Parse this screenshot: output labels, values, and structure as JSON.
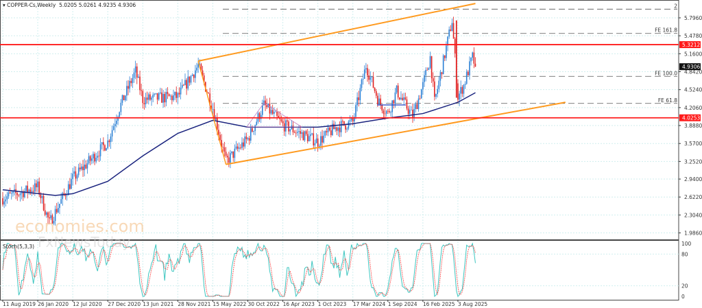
{
  "header": {
    "symbol": "COPPER-Cs,Weekly",
    "ohlc": "5.0205 5.0261 4.9235 4.9306"
  },
  "indicator": {
    "label": "Stoch(5,3,3)",
    "levels": [
      "100",
      "80",
      "20",
      "0"
    ]
  },
  "watermarks": [
    "economies.com",
    "FxNewsToday"
  ],
  "colors": {
    "bull": "#2a7fd4",
    "bear": "#e02020",
    "ma": "#1a237e",
    "channel": "#ff9a1f",
    "level": "#ff1a1a",
    "stoch_main": "#3cc6c0",
    "stoch_signal": "#ff4040"
  },
  "chart_data": {
    "type": "candlestick",
    "timeframe": "Weekly",
    "y_ticks": [
      "5.7960",
      "5.4780",
      "5.1600",
      "4.8420",
      "4.5240",
      "4.2060",
      "3.8880",
      "3.5700",
      "3.2520",
      "2.9400",
      "2.6220",
      "2.3040",
      "1.9860"
    ],
    "x_ticks": [
      "11 Aug 2019",
      "26 Jan 2020",
      "12 Jul 2020",
      "27 Dec 2020",
      "13 Jun 2021",
      "28 Nov 2021",
      "15 May 2022",
      "30 Oct 2022",
      "16 Apr 2023",
      "1 Oct 2023",
      "17 Mar 2024",
      "1 Sep 2024",
      "16 Feb 2025",
      "3 Aug 2025"
    ],
    "last_price": "4.9306",
    "horizontal_levels": [
      {
        "label": "5.3212",
        "value": 5.3212
      },
      {
        "label": "4.0253",
        "value": 4.0253
      }
    ],
    "fibonacci": [
      {
        "label": "2",
        "value": 5.95
      },
      {
        "label": "FE 161.8",
        "value": 5.52
      },
      {
        "label": "FE 100.0",
        "value": 4.76
      },
      {
        "label": "FE 61.8",
        "value": 4.28
      }
    ],
    "price_path": [
      [
        "11 Aug 2019",
        2.6
      ],
      [
        "26 Jan 2020",
        2.8
      ],
      [
        "22 Mar 2020",
        2.16
      ],
      [
        "12 Jul 2020",
        2.95
      ],
      [
        "27 Dec 2020",
        3.6
      ],
      [
        "21 Feb 2021",
        4.2
      ],
      [
        "9 May 2021",
        4.85
      ],
      [
        "13 Jun 2021",
        4.35
      ],
      [
        "28 Nov 2021",
        4.4
      ],
      [
        "6 Mar 2022",
        4.95
      ],
      [
        "15 May 2022",
        4.2
      ],
      [
        "17 Jul 2022",
        3.25
      ],
      [
        "30 Oct 2022",
        3.65
      ],
      [
        "15 Jan 2023",
        4.25
      ],
      [
        "16 Apr 2023",
        3.9
      ],
      [
        "1 Oct 2023",
        3.6
      ],
      [
        "24 Dec 2023",
        3.85
      ],
      [
        "17 Mar 2024",
        3.95
      ],
      [
        "19 May 2024",
        4.95
      ],
      [
        "21 Jul 2024",
        4.3
      ],
      [
        "1 Sep 2024",
        4.1
      ],
      [
        "13 Oct 2024",
        4.5
      ],
      [
        "29 Dec 2024",
        4.05
      ],
      [
        "16 Feb 2025",
        4.6
      ],
      [
        "23 Mar 2025",
        5.1
      ],
      [
        "13 Apr 2025",
        4.3
      ],
      [
        "6 Jul 2025",
        5.75
      ],
      [
        "3 Aug 2025",
        4.4
      ],
      [
        "31 Aug 2025",
        4.6
      ],
      [
        "12 Oct 2025",
        5.1
      ],
      [
        "26 Oct 2025",
        4.93
      ]
    ],
    "moving_average": [
      [
        "11 Aug 2019",
        2.75
      ],
      [
        "19 Apr 2020",
        2.65
      ],
      [
        "12 Jul 2020",
        2.68
      ],
      [
        "27 Dec 2020",
        2.9
      ],
      [
        "13 Jun 2021",
        3.35
      ],
      [
        "28 Nov 2021",
        3.75
      ],
      [
        "15 May 2022",
        3.98
      ],
      [
        "30 Oct 2022",
        3.86
      ],
      [
        "1 Oct 2023",
        3.86
      ],
      [
        "17 Mar 2024",
        3.92
      ],
      [
        "1 Sep 2024",
        4.02
      ],
      [
        "16 Feb 2025",
        4.1
      ],
      [
        "3 Aug 2025",
        4.3
      ],
      [
        "26 Oct 2025",
        4.47
      ]
    ],
    "channel": {
      "upper": [
        [
          "6 Mar 2022",
          5.03
        ],
        [
          "26 Oct 2025",
          6.05
        ]
      ],
      "lower": [
        [
          "17 Jul 2022",
          3.2
        ],
        [
          "1 Jan 2027",
          4.3
        ]
      ]
    }
  }
}
